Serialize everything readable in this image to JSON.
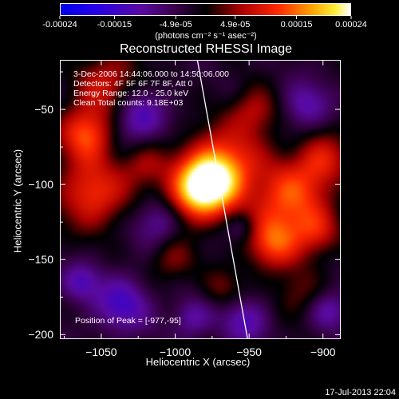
{
  "colorbar": {
    "ticks": [
      "-0.00024",
      "-0.00015",
      "-4.9e-05",
      "4.9e-05",
      "0.00015",
      "0.00024"
    ],
    "tick_values": [
      -0.00024,
      -0.00015,
      -4.9e-05,
      4.9e-05,
      0.00015,
      0.00024
    ],
    "range": [
      -0.00024,
      0.00024
    ],
    "units": "(photons cm⁻² s⁻¹ asec⁻²)"
  },
  "chart_data": {
    "type": "heatmap",
    "title": "Reconstructed RHESSI Image",
    "xlabel": "Heliocentric X (arcsec)",
    "ylabel": "Heliocentric Y (arcsec)",
    "xlim": [
      -1078,
      -888
    ],
    "ylim": [
      -203,
      -17
    ],
    "xticks": [
      -1050,
      -1000,
      -950,
      -900
    ],
    "xtick_labels": [
      "−1050",
      "−1000",
      "−950",
      "−900"
    ],
    "yticks": [
      -50,
      -100,
      -150,
      -200
    ],
    "ytick_labels": [
      "−50",
      "−100",
      "−150",
      "−200"
    ],
    "peak": {
      "x": -977,
      "y": -95
    },
    "limb_line": [
      [
        -985,
        -17
      ],
      [
        -951,
        -203
      ]
    ],
    "annotations": {
      "time": "3-Dec-2006 14:44:06.000 to 14:50:06.000",
      "detectors": "Detectors: 4F 5F 6F 7F 8F, Att 0",
      "energy": "Energy Range: 12.0 - 25.0 keV",
      "clean": "Clean    Total counts: 9.18E+03",
      "peak_label": "Position of Peak = [-977,-95]"
    },
    "grid": false
  },
  "timestamp": "17-Jul-2013 22:04"
}
